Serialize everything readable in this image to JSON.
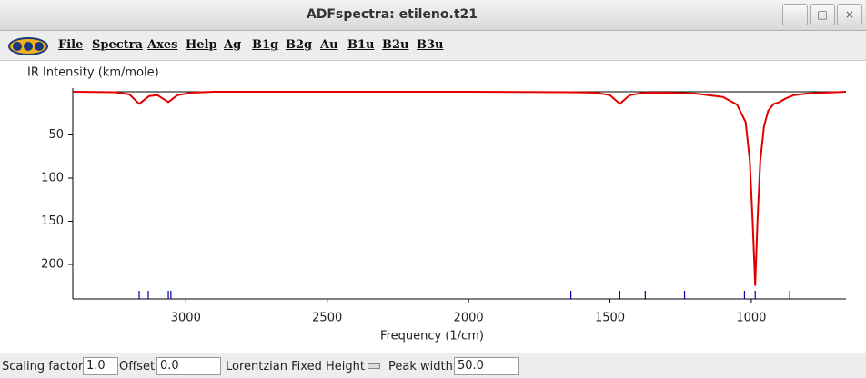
{
  "window": {
    "title": "ADFspectra: etileno.t21"
  },
  "menu": [
    "File",
    "Spectra",
    "Axes",
    "Help",
    "Ag",
    "B1g",
    "B2g",
    "Au",
    "B1u",
    "B2u",
    "B3u"
  ],
  "chart_data": {
    "type": "line",
    "ylabel": "IR Intensity (km/mole)",
    "xlabel": "Frequency (1/cm)",
    "x": [
      3400,
      3250,
      3200,
      3165,
      3130,
      3100,
      3062,
      3030,
      2980,
      2900,
      2000,
      1640,
      1550,
      1500,
      1465,
      1430,
      1380,
      1300,
      1200,
      1100,
      1050,
      1020,
      1005,
      995,
      986,
      978,
      968,
      955,
      940,
      920,
      900,
      880,
      850,
      800,
      750,
      700,
      665
    ],
    "series": [
      {
        "color": "#e00000",
        "values": [
          0,
          0.5,
          3,
          14,
          5,
          4,
          12,
          4,
          1,
          0,
          0,
          0.5,
          1,
          4,
          14,
          4,
          1,
          1,
          2,
          6,
          15,
          35,
          80,
          150,
          224,
          150,
          80,
          40,
          22,
          14,
          12,
          8,
          4,
          2,
          1,
          0.5,
          0
        ]
      }
    ],
    "sticks": {
      "color": "#0000b0",
      "x": [
        3165,
        3133,
        3062,
        3053,
        1638,
        1465,
        1375,
        1236,
        1024,
        986,
        864
      ]
    },
    "xlim": [
      3400,
      665
    ],
    "xticks": [
      3000,
      2500,
      2000,
      1500,
      1000
    ],
    "ylim": [
      0,
      240
    ],
    "yticks": [
      50,
      100,
      150,
      200
    ],
    "y_inverted": true
  },
  "controls": {
    "scaling_label": "Scaling factor:",
    "scaling_value": "1.0",
    "offset_label": "Offset:",
    "offset_value": "0.0",
    "lorentzian_label": "Lorentzian Fixed Height",
    "peak_width_label": "Peak width:",
    "peak_width_value": "50.0"
  }
}
